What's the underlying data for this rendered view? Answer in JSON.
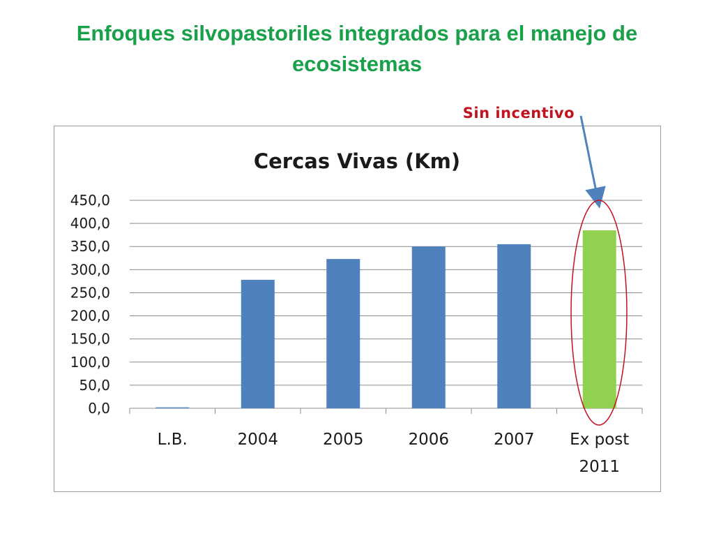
{
  "slide": {
    "title": "Enfoques silvopastoriles integrados para el manejo de ecosistemas",
    "annotation": "Sin incentivo"
  },
  "colors": {
    "title": "#1aa04a",
    "annotation": "#c0121f",
    "bar_default": "#4f81bd",
    "bar_highlight": "#92d050",
    "ellipse": "#c0121f",
    "arrow": "#4f81bd",
    "grid": "#8c8c8c"
  },
  "chart_data": {
    "type": "bar",
    "title": "Cercas Vivas (Km)",
    "categories": [
      [
        "L.B."
      ],
      [
        "2004"
      ],
      [
        "2005"
      ],
      [
        "2006"
      ],
      [
        "2007"
      ],
      [
        "Ex post",
        "2011"
      ]
    ],
    "values": [
      2,
      278,
      323,
      350,
      355,
      385
    ],
    "highlight_index": 5,
    "ylim": [
      0,
      450
    ],
    "ytick_step": 50,
    "ytick_decimals": 1,
    "decimal_separator": ",",
    "grid": true,
    "legend": "none"
  }
}
